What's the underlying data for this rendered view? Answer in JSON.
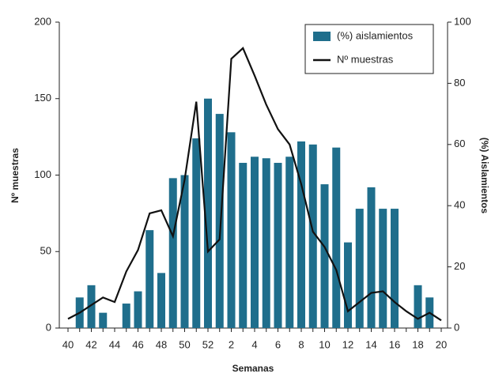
{
  "chart_data": {
    "type": "bar-line",
    "xlabel": "Semanas",
    "ylabel": "Nº muestras",
    "y2label": "(%) Aislamientos",
    "categories": [
      "40",
      null,
      "42",
      null,
      "44",
      null,
      "46",
      null,
      "48",
      null,
      "50",
      null,
      "52",
      null,
      "2",
      null,
      "4",
      null,
      "6",
      null,
      "8",
      null,
      "10",
      null,
      "12",
      null,
      "14",
      null,
      "16",
      null,
      "18",
      null,
      "20"
    ],
    "ylim": [
      0,
      200
    ],
    "yticks": [
      0,
      50,
      100,
      150,
      200
    ],
    "y2lim": [
      0,
      100
    ],
    "y2ticks": [
      0,
      20,
      40,
      60,
      80,
      100
    ],
    "legend": "top-right",
    "series": [
      {
        "name": "(%) aislamientos",
        "kind": "bar",
        "axis": "y2",
        "color": "#1f6e8c",
        "values": [
          null,
          10,
          14,
          5,
          null,
          8,
          12,
          32,
          18,
          49,
          50,
          62,
          75,
          70,
          64,
          54,
          56,
          55.5,
          54,
          56,
          61,
          60,
          47,
          59,
          28,
          39,
          46,
          39,
          39,
          null,
          14,
          10,
          null
        ]
      },
      {
        "name": "Nº muestras",
        "kind": "line",
        "axis": "y",
        "color": "#111111",
        "values": [
          6,
          10,
          15,
          20,
          17,
          37,
          51,
          75,
          77,
          60,
          97,
          148,
          50,
          58,
          176,
          183,
          165,
          146,
          130,
          120,
          94,
          63,
          53,
          38,
          11,
          17,
          23,
          24,
          17,
          11,
          6,
          10,
          5
        ]
      }
    ]
  }
}
